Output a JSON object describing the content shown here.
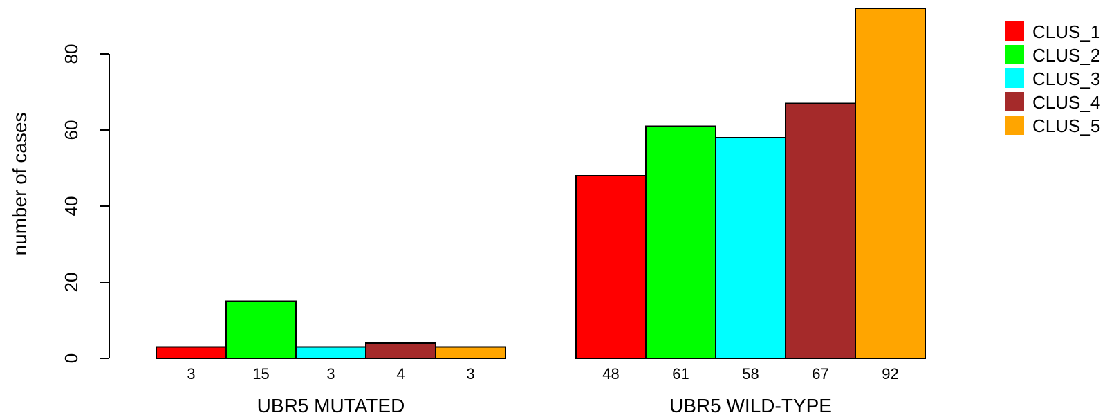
{
  "chart_data": {
    "type": "bar",
    "ylabel": "number of cases",
    "ylim": [
      0,
      92
    ],
    "yticks": [
      0,
      20,
      40,
      60,
      80
    ],
    "groups": [
      "UBR5 MUTATED",
      "UBR5 WILD-TYPE"
    ],
    "series": [
      {
        "name": "CLUS_1",
        "color": "#ff0000",
        "values": [
          3,
          48
        ]
      },
      {
        "name": "CLUS_2",
        "color": "#00ff00",
        "values": [
          15,
          61
        ]
      },
      {
        "name": "CLUS_3",
        "color": "#00ffff",
        "values": [
          3,
          58
        ]
      },
      {
        "name": "CLUS_4",
        "color": "#a52a2a",
        "values": [
          4,
          67
        ]
      },
      {
        "name": "CLUS_5",
        "color": "#ffa500",
        "values": [
          3,
          92
        ]
      }
    ],
    "legend": "top-right",
    "grid": false
  }
}
